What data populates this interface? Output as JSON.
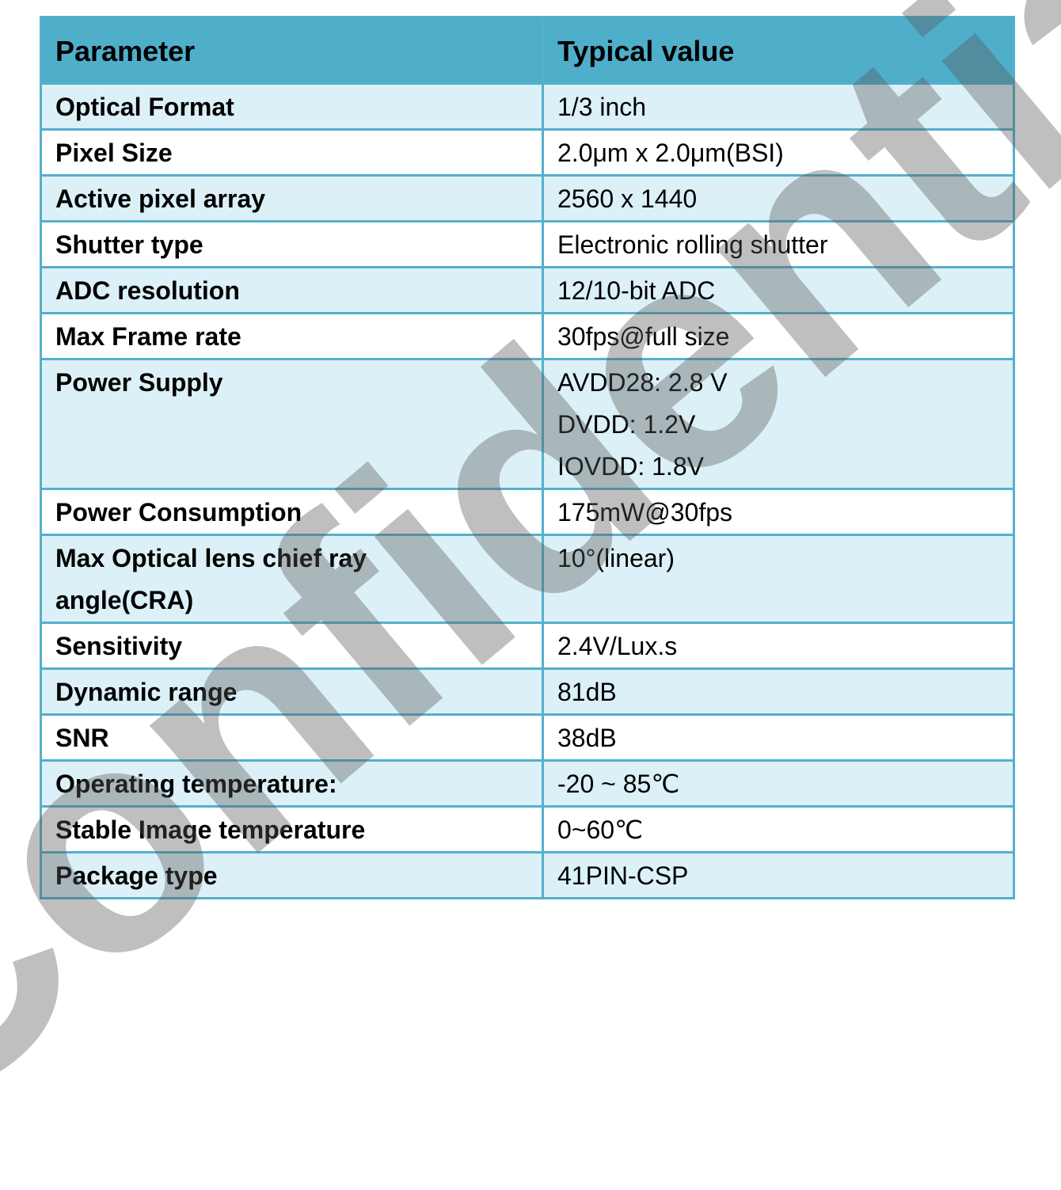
{
  "table": {
    "headers": [
      "Parameter",
      "Typical value"
    ],
    "rows": [
      {
        "param": "Optical Format",
        "value": [
          "1/3 inch"
        ]
      },
      {
        "param": "Pixel Size",
        "value": [
          "2.0μm x 2.0μm(BSI)"
        ]
      },
      {
        "param": "Active pixel array",
        "value": [
          "2560 x 1440"
        ]
      },
      {
        "param": "Shutter type",
        "value": [
          "Electronic rolling shutter"
        ]
      },
      {
        "param": "ADC resolution",
        "value": [
          "12/10-bit ADC"
        ]
      },
      {
        "param": "Max Frame rate",
        "value": [
          "30fps@full size"
        ]
      },
      {
        "param": "Power Supply",
        "value": [
          "AVDD28: 2.8 V",
          "DVDD: 1.2V",
          "IOVDD: 1.8V"
        ]
      },
      {
        "param": "Power Consumption",
        "value": [
          "175mW@30fps"
        ]
      },
      {
        "param_lines": [
          "Max Optical lens chief ray",
          "angle(CRA)"
        ],
        "value": [
          "10°(linear)"
        ]
      },
      {
        "param": "Sensitivity",
        "value": [
          "2.4V/Lux.s"
        ]
      },
      {
        "param": "Dynamic range",
        "value": [
          "81dB"
        ]
      },
      {
        "param": "SNR",
        "value": [
          "38dB"
        ]
      },
      {
        "param": "Operating temperature:",
        "value": [
          "-20 ~ 85℃"
        ]
      },
      {
        "param": "Stable Image temperature",
        "value": [
          "0~60℃"
        ]
      },
      {
        "param": "Package type",
        "value": [
          "41PIN-CSP"
        ]
      }
    ]
  },
  "watermark": {
    "text": "Confidential",
    "color": "#8a8a8a"
  }
}
